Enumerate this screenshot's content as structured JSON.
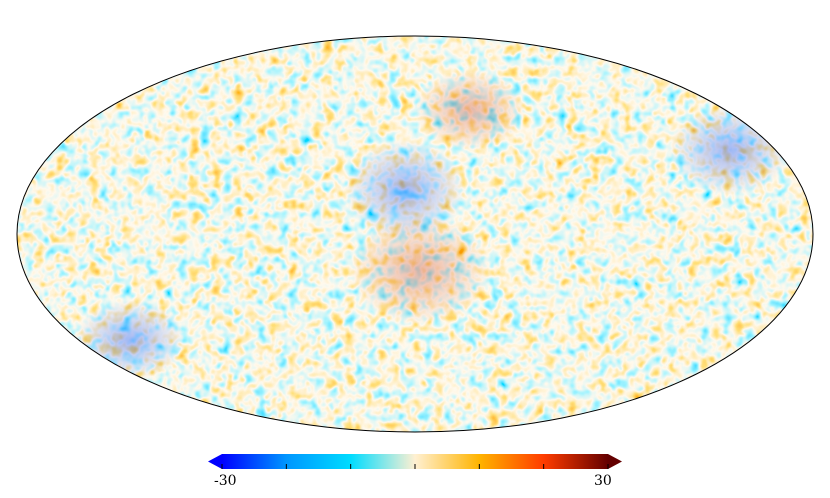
{
  "map": {
    "projection": "mollweide",
    "outline_color": "#000000",
    "background": "#ffffff"
  },
  "colorbar": {
    "min_label": "-30",
    "max_label": "30",
    "min": -30,
    "max": 30,
    "extend": "both",
    "ticks": [
      -30,
      -20,
      -10,
      0,
      10,
      20,
      30
    ],
    "colors": [
      "#0000ff",
      "#0096ff",
      "#00dcff",
      "#fff0d2",
      "#ffb400",
      "#ff3c00",
      "#640000"
    ]
  }
}
